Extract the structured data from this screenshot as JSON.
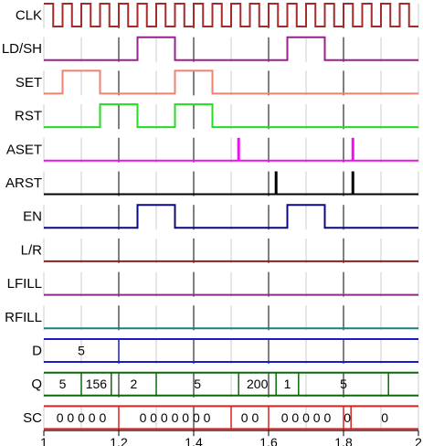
{
  "signals": [
    {
      "id": "clk",
      "label": "CLK",
      "kind": "clock",
      "color": "#a52a2a"
    },
    {
      "id": "ldsh",
      "label": "LD/SH",
      "kind": "digital",
      "color": "#9b1f8c",
      "edges": [
        [
          1.0,
          0
        ],
        [
          1.25,
          1
        ],
        [
          1.35,
          0
        ],
        [
          1.65,
          1
        ],
        [
          1.75,
          0
        ]
      ]
    },
    {
      "id": "set",
      "label": "SET",
      "kind": "digital",
      "color": "#f08070",
      "edges": [
        [
          1.0,
          0
        ],
        [
          1.05,
          1
        ],
        [
          1.15,
          0
        ],
        [
          1.35,
          1
        ],
        [
          1.45,
          0
        ]
      ]
    },
    {
      "id": "rst",
      "label": "RST",
      "kind": "digital",
      "color": "#22dd22",
      "edges": [
        [
          1.0,
          0
        ],
        [
          1.15,
          1
        ],
        [
          1.25,
          0
        ],
        [
          1.35,
          1
        ],
        [
          1.45,
          0
        ]
      ]
    },
    {
      "id": "aset",
      "label": "ASET",
      "kind": "pulse",
      "color": "#ee10ee",
      "pulses": [
        1.52,
        1.825
      ]
    },
    {
      "id": "arst",
      "label": "ARST",
      "kind": "pulse",
      "color": "#000000",
      "pulses": [
        1.62,
        1.825
      ]
    },
    {
      "id": "en",
      "label": "EN",
      "kind": "digital",
      "color": "#0a0a80",
      "edges": [
        [
          1.0,
          0
        ],
        [
          1.25,
          1
        ],
        [
          1.35,
          0
        ],
        [
          1.65,
          1
        ],
        [
          1.75,
          0
        ]
      ]
    },
    {
      "id": "lr",
      "label": "L/R",
      "kind": "digital",
      "color": "#8b2020",
      "edges": [
        [
          1.0,
          0
        ]
      ]
    },
    {
      "id": "lfill",
      "label": "LFILL",
      "kind": "digital",
      "color": "#8b2a8b",
      "edges": [
        [
          1.0,
          0
        ]
      ]
    },
    {
      "id": "rfill",
      "label": "RFILL",
      "kind": "digital",
      "color": "#1a8080",
      "edges": [
        [
          1.0,
          0
        ]
      ]
    },
    {
      "id": "d",
      "label": "D",
      "kind": "bus",
      "color": "#1a1acc",
      "segments": [
        [
          1.0,
          1.2,
          "5"
        ],
        [
          1.2,
          2.0,
          ""
        ]
      ]
    },
    {
      "id": "q",
      "label": "Q",
      "kind": "bus",
      "color": "#0a6a0a",
      "segments": [
        [
          1.0,
          1.1,
          "5"
        ],
        [
          1.1,
          1.18,
          "156"
        ],
        [
          1.18,
          1.3,
          "2"
        ],
        [
          1.3,
          1.52,
          "5"
        ],
        [
          1.52,
          1.62,
          "200"
        ],
        [
          1.62,
          1.68,
          "1"
        ],
        [
          1.68,
          1.92,
          "5"
        ],
        [
          1.92,
          2.0,
          ""
        ]
      ]
    },
    {
      "id": "sc",
      "label": "SC",
      "kind": "bus",
      "color": "#dd2020",
      "segments": [
        [
          1.0,
          1.2,
          "0 0 0 0 0"
        ],
        [
          1.2,
          1.5,
          "0 0 0 0 0 0 0"
        ],
        [
          1.5,
          1.6,
          "0 0"
        ],
        [
          1.6,
          1.8,
          "0 0 0 0 0"
        ],
        [
          1.8,
          1.82,
          "0"
        ],
        [
          1.82,
          2.0,
          "0"
        ]
      ]
    }
  ],
  "axis": {
    "min": 1.0,
    "max": 2.0,
    "ticks": [
      {
        "value": 1.0,
        "label": "1"
      },
      {
        "value": 1.2,
        "label": "1.2"
      },
      {
        "value": 1.4,
        "label": "1.4"
      },
      {
        "value": 1.6,
        "label": "1.6"
      },
      {
        "value": 1.8,
        "label": "1.8"
      },
      {
        "value": 2.0,
        "label": "2"
      }
    ],
    "minor_step": 0.1,
    "clock_half_period": 0.025
  },
  "colors": {
    "grid_minor": "#cccccc",
    "grid_major": "#000000",
    "axis_text": "#000000",
    "label_text": "#000000"
  }
}
